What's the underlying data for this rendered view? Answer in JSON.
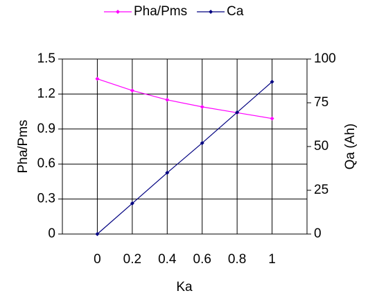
{
  "chart_data": {
    "type": "line",
    "x": [
      0,
      0.2,
      0.4,
      0.6,
      0.8,
      1
    ],
    "series": [
      {
        "name": "Pha/Pms",
        "color": "#ff00ff",
        "values": [
          1.33,
          1.23,
          1.15,
          1.09,
          1.04,
          0.99
        ]
      },
      {
        "name": "Ca",
        "color": "#000080",
        "axis": "y2",
        "values": [
          0,
          17.5,
          35,
          52,
          69.5,
          87
        ]
      }
    ],
    "xlabel": "Ka",
    "ylabel": "Pha/Pms",
    "y2label": "Qa (Ah)",
    "xlim": [
      -0.2,
      1.2
    ],
    "xticks": [
      0,
      0.2,
      0.4,
      0.6,
      0.8,
      1
    ],
    "ylim": [
      0,
      1.5
    ],
    "yticks": [
      0,
      0.3,
      0.6,
      0.9,
      1.2,
      1.5
    ],
    "y2lim": [
      0,
      100
    ],
    "y2ticks": [
      0,
      25,
      50,
      75,
      100
    ],
    "grid": true,
    "legend": "top"
  }
}
